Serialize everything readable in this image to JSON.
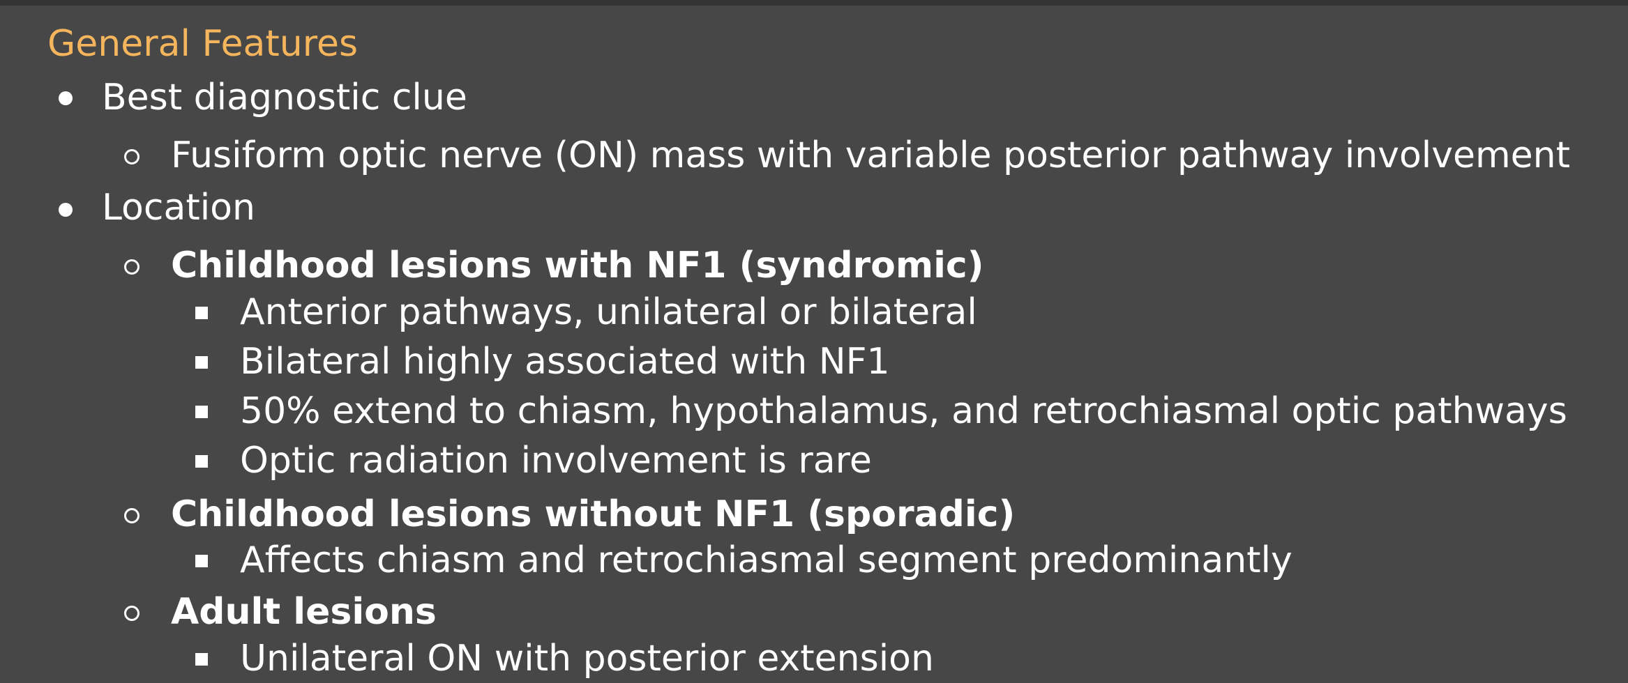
{
  "heading": "General Features",
  "items": [
    {
      "text": "Best diagnostic clue"
    },
    {
      "text": "Fusiform optic nerve (ON) mass with variable posterior pathway involvement"
    },
    {
      "text": "Location"
    },
    {
      "text": "Childhood lesions with NF1 (syndromic)"
    },
    {
      "text": "Anterior pathways, unilateral or bilateral"
    },
    {
      "text": "Bilateral highly associated with NF1"
    },
    {
      "text": "50% extend to chiasm, hypothalamus, and retrochiasmal optic pathways"
    },
    {
      "text": "Optic radiation involvement is rare"
    },
    {
      "text": "Childhood lesions without NF1 (sporadic)"
    },
    {
      "text": "Affects chiasm and retrochiasmal segment predominantly"
    },
    {
      "text": "Adult lesions"
    },
    {
      "text": "Unilateral ON with posterior extension"
    }
  ]
}
